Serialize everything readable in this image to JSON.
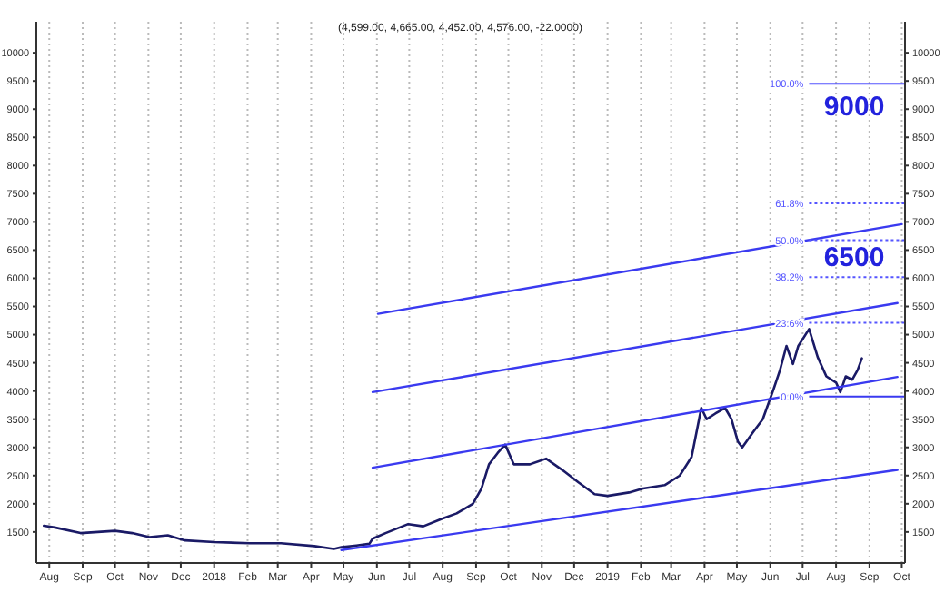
{
  "chart_data": {
    "type": "line",
    "title": "(4,599.00, 4,665.00, 4,452.00, 4,576.00, -22.0000)",
    "xlim": [
      "2017-07-20",
      "2019-10-04"
    ],
    "xticks": [
      {
        "value": "2017-08-01",
        "label": "Aug"
      },
      {
        "value": "2017-09-01",
        "label": "Sep"
      },
      {
        "value": "2017-10-01",
        "label": "Oct"
      },
      {
        "value": "2017-11-01",
        "label": "Nov"
      },
      {
        "value": "2017-12-01",
        "label": "Dec"
      },
      {
        "value": "2018-01-01",
        "label": "2018"
      },
      {
        "value": "2018-02-01",
        "label": "Feb"
      },
      {
        "value": "2018-03-01",
        "label": "Mar"
      },
      {
        "value": "2018-04-01",
        "label": "Apr"
      },
      {
        "value": "2018-05-01",
        "label": "May"
      },
      {
        "value": "2018-06-01",
        "label": "Jun"
      },
      {
        "value": "2018-07-01",
        "label": "Jul"
      },
      {
        "value": "2018-08-01",
        "label": "Aug"
      },
      {
        "value": "2018-09-01",
        "label": "Sep"
      },
      {
        "value": "2018-10-01",
        "label": "Oct"
      },
      {
        "value": "2018-11-01",
        "label": "Nov"
      },
      {
        "value": "2018-12-01",
        "label": "Dec"
      },
      {
        "value": "2019-01-01",
        "label": "2019"
      },
      {
        "value": "2019-02-01",
        "label": "Feb"
      },
      {
        "value": "2019-03-01",
        "label": "Mar"
      },
      {
        "value": "2019-04-01",
        "label": "Apr"
      },
      {
        "value": "2019-05-01",
        "label": "May"
      },
      {
        "value": "2019-06-01",
        "label": "Jun"
      },
      {
        "value": "2019-07-01",
        "label": "Jul"
      },
      {
        "value": "2019-08-01",
        "label": "Aug"
      },
      {
        "value": "2019-09-01",
        "label": "Sep"
      },
      {
        "value": "2019-10-01",
        "label": "Oct"
      }
    ],
    "ylim": [
      950,
      10550
    ],
    "yticks": [
      1500,
      2000,
      2500,
      3000,
      3500,
      4000,
      4500,
      5000,
      5500,
      6000,
      6500,
      7000,
      7500,
      8000,
      8500,
      9000,
      9500,
      10000
    ],
    "y2lim": [
      950,
      10550
    ],
    "y2ticks": [
      1500,
      2000,
      2500,
      3000,
      3500,
      4000,
      4500,
      5000,
      5500,
      6000,
      6500,
      7000,
      7500,
      8000,
      8500,
      9000,
      9500,
      10000
    ],
    "grid": "x",
    "marker": "none",
    "line_style": "solid",
    "series": [
      {
        "color": "#1a1a66",
        "x": [
          "2017-07-27",
          "2017-08-06",
          "2017-08-30",
          "2017-09-15",
          "2017-10-01",
          "2017-10-17",
          "2017-11-02",
          "2017-11-19",
          "2017-12-05",
          "2018-01-01",
          "2018-02-03",
          "2018-03-04",
          "2018-04-04",
          "2018-04-22",
          "2018-04-29",
          "2018-05-13",
          "2018-05-25",
          "2018-05-28",
          "2018-06-09",
          "2018-06-30",
          "2018-07-14",
          "2018-07-31",
          "2018-08-14",
          "2018-08-29",
          "2018-09-06",
          "2018-09-13",
          "2018-09-21",
          "2018-09-28",
          "2018-10-06",
          "2018-10-21",
          "2018-11-05",
          "2018-11-20",
          "2018-12-05",
          "2018-12-20",
          "2019-01-01",
          "2019-01-21",
          "2019-02-03",
          "2019-02-23",
          "2019-03-09",
          "2019-03-20",
          "2019-03-29",
          "2019-04-03",
          "2019-04-11",
          "2019-04-20",
          "2019-04-26",
          "2019-05-02",
          "2019-05-06",
          "2019-05-16",
          "2019-05-25",
          "2019-06-04",
          "2019-06-10",
          "2019-06-16",
          "2019-06-22",
          "2019-06-27",
          "2019-07-07",
          "2019-07-15",
          "2019-07-23",
          "2019-08-01",
          "2019-08-05",
          "2019-08-10",
          "2019-08-16",
          "2019-08-21",
          "2019-08-25"
        ],
        "values": [
          1610,
          1580,
          1480,
          1500,
          1520,
          1480,
          1410,
          1440,
          1350,
          1320,
          1300,
          1300,
          1250,
          1200,
          1230,
          1260,
          1290,
          1380,
          1480,
          1640,
          1600,
          1730,
          1830,
          2000,
          2270,
          2700,
          2900,
          3050,
          2700,
          2700,
          2800,
          2600,
          2380,
          2170,
          2140,
          2200,
          2270,
          2330,
          2500,
          2830,
          3700,
          3500,
          3600,
          3700,
          3500,
          3100,
          3000,
          3270,
          3500,
          4030,
          4370,
          4800,
          4480,
          4800,
          5100,
          4600,
          4260,
          4150,
          3980,
          4260,
          4200,
          4370,
          4580
        ]
      },
      {
        "color": "#3a3af0",
        "x": [
          "2018-04-29",
          "2019-09-27"
        ],
        "values": [
          1180,
          2600
        ]
      },
      {
        "color": "#3a3af0",
        "x": [
          "2018-05-28",
          "2019-09-27"
        ],
        "values": [
          2640,
          4250
        ]
      },
      {
        "color": "#3a3af0",
        "x": [
          "2018-05-28",
          "2019-09-27"
        ],
        "values": [
          3980,
          5560
        ]
      },
      {
        "color": "#3a3af0",
        "x": [
          "2018-06-02",
          "2019-10-01"
        ],
        "values": [
          5370,
          6960
        ]
      }
    ],
    "ref_lines": [
      {
        "axis": "y",
        "value": 9450,
        "color": "#5555ff",
        "line_style": "solid"
      },
      {
        "axis": "y",
        "value": 7330,
        "color": "#5555ff",
        "line_style": "dotted"
      },
      {
        "axis": "y",
        "value": 6675,
        "color": "#5555ff",
        "line_style": "dotted"
      },
      {
        "axis": "y",
        "value": 6020,
        "color": "#5555ff",
        "line_style": "dotted"
      },
      {
        "axis": "y",
        "value": 5210,
        "color": "#5555ff",
        "line_style": "dotted"
      },
      {
        "axis": "y",
        "value": 3900,
        "color": "#3a3af0",
        "line_style": "solid"
      }
    ],
    "annotations": [
      "9000",
      "6500",
      "100.0%",
      "61.8%",
      "50.0%",
      "38.2%",
      "23.6%",
      "0.0%"
    ]
  }
}
